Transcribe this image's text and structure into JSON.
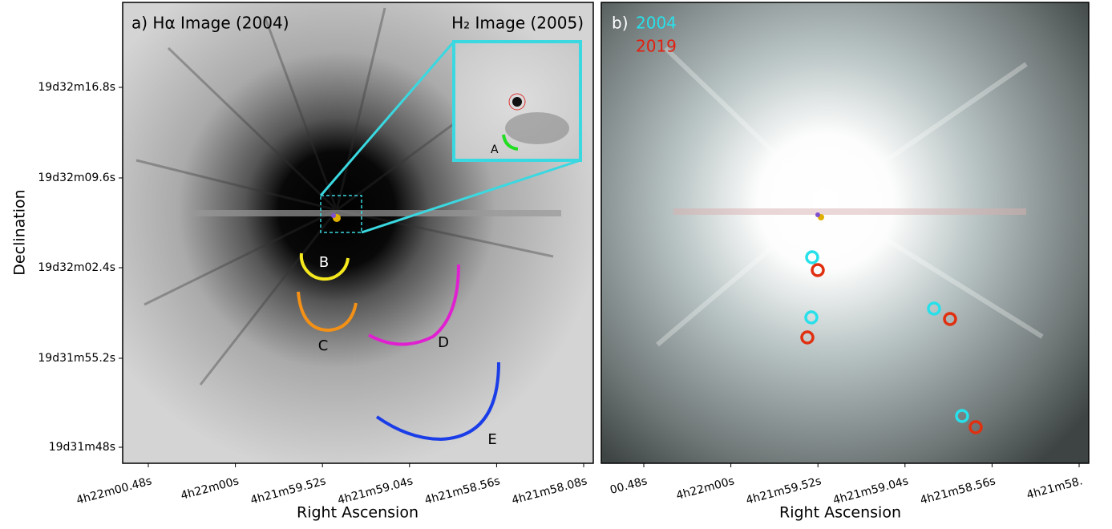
{
  "panel_a": {
    "title": "a)  Hα Image (2004)",
    "inset_title": "H₂ Image (2005)",
    "inset_label": "A",
    "labels": [
      "B",
      "C",
      "D",
      "E"
    ],
    "y_axis": {
      "label": "Declination",
      "ticks": [
        "19d32m16.8s",
        "19d32m09.6s",
        "19d32m02.4s",
        "19d31m55.2s",
        "19d31m48s"
      ]
    },
    "x_axis": {
      "label": "Right Ascension",
      "ticks": [
        "4h22m00.48s",
        "4h22m00s",
        "4h21m59.52s",
        "4h21m59.04s",
        "4h21m58.56s",
        "4h21m58.08s"
      ]
    }
  },
  "panel_b": {
    "title": "b)",
    "legend": [
      "2004",
      "2019"
    ],
    "x_axis": {
      "label": "Right Ascension",
      "ticks": [
        "00.48s",
        "4h22m00s",
        "4h21m59.52s",
        "4h21m59.04s",
        "4h21m58.56s",
        "4h21m58."
      ]
    }
  }
}
